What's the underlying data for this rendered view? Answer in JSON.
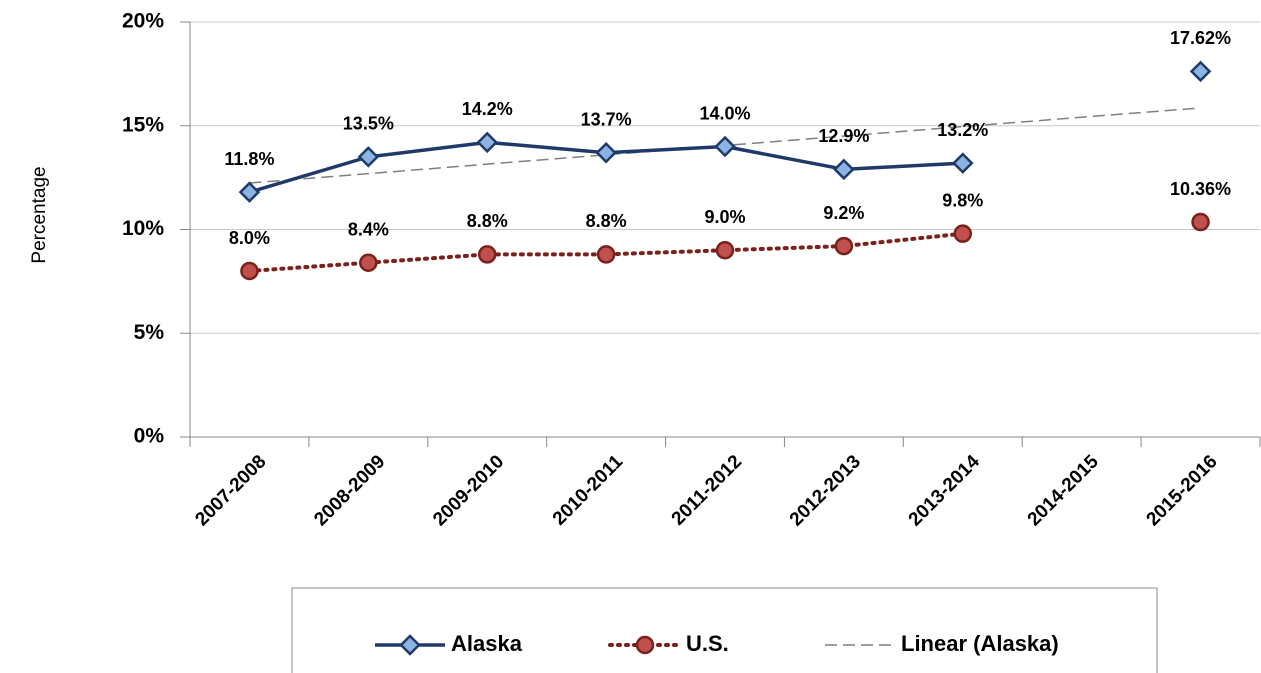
{
  "chart_data": {
    "type": "line",
    "y_label": "Percentage",
    "categories": [
      "2007-2008",
      "2008-2009",
      "2009-2010",
      "2010-2011",
      "2011-2012",
      "2012-2013",
      "2013-2014",
      "2014-2015",
      "2015-2016"
    ],
    "ylim": [
      0,
      20
    ],
    "yticks": [
      {
        "value": 0,
        "label": "0%"
      },
      {
        "value": 5,
        "label": "5%"
      },
      {
        "value": 10,
        "label": "10%"
      },
      {
        "value": 15,
        "label": "15%"
      },
      {
        "value": 20,
        "label": "20%"
      }
    ],
    "grid": true,
    "legend": "bottom",
    "series": [
      {
        "name": "Alaska",
        "color": "#1f3a68",
        "marker": "diamond",
        "marker_color": "#8db3e2",
        "style": "solid",
        "values": [
          11.8,
          13.5,
          14.2,
          13.7,
          14.0,
          12.9,
          13.2,
          null,
          17.62
        ],
        "value_labels": [
          "11.8%",
          "13.5%",
          "14.2%",
          "13.7%",
          "14.0%",
          "12.9%",
          "13.2%",
          null,
          "17.62%"
        ]
      },
      {
        "name": "U.S.",
        "color": "#7a211c",
        "marker": "circle",
        "marker_color": "#c0504d",
        "style": "dotted",
        "values": [
          8.0,
          8.4,
          8.8,
          8.8,
          9.0,
          9.2,
          9.8,
          null,
          10.36
        ],
        "value_labels": [
          "8.0%",
          "8.4%",
          "8.8%",
          "8.8%",
          "9.0%",
          "9.2%",
          "9.8%",
          null,
          "10.36%"
        ]
      },
      {
        "name": "Linear (Alaska)",
        "color": "#7f7f7f",
        "marker": null,
        "style": "dashed",
        "values": [
          12.24,
          12.69,
          13.15,
          13.6,
          14.05,
          14.5,
          14.96,
          15.41,
          15.86
        ]
      }
    ]
  }
}
